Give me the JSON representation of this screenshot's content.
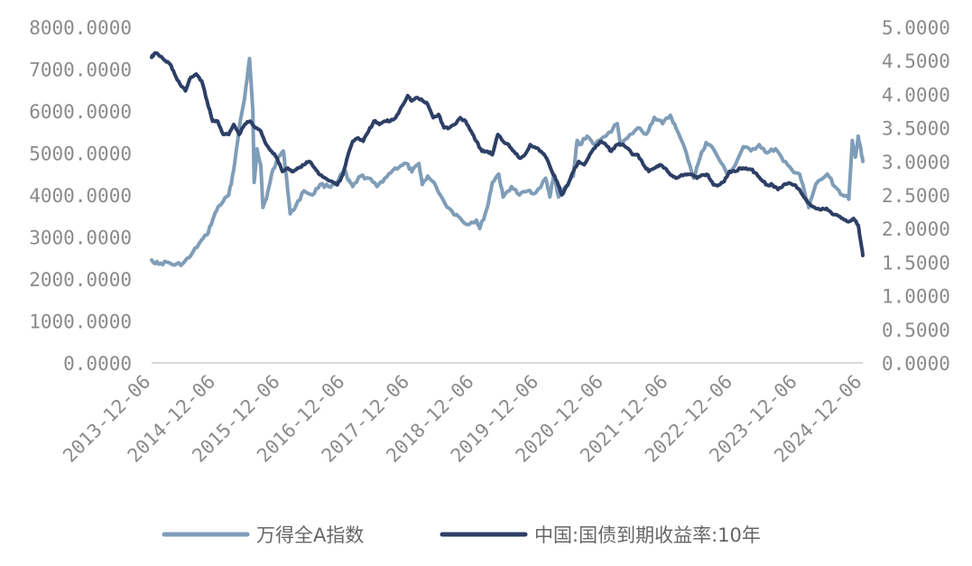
{
  "chart_data": {
    "type": "line",
    "title": "",
    "xlabel": "",
    "ylabel_left": "",
    "ylabel_right": "",
    "x_range": [
      "2013-12-06",
      "2024-12-06"
    ],
    "x_tick_labels": [
      "2013-12-06",
      "2014-12-06",
      "2015-12-06",
      "2016-12-06",
      "2017-12-06",
      "2018-12-06",
      "2019-12-06",
      "2020-12-06",
      "2021-12-06",
      "2022-12-06",
      "2023-12-06",
      "2024-12-06"
    ],
    "y_left": {
      "lim": [
        0,
        8000
      ],
      "tick_labels": [
        "0.0000",
        "1000.0000",
        "2000.0000",
        "3000.0000",
        "4000.0000",
        "5000.0000",
        "6000.0000",
        "7000.0000",
        "8000.0000"
      ]
    },
    "y_right": {
      "lim": [
        0,
        5
      ],
      "tick_labels": [
        "0.0000",
        "0.5000",
        "1.0000",
        "1.5000",
        "2.0000",
        "2.5000",
        "3.0000",
        "3.5000",
        "4.0000",
        "4.5000",
        "5.0000"
      ]
    },
    "grid": false,
    "legend_position": "bottom",
    "series": [
      {
        "name": "万得全A指数",
        "axis": "left",
        "color": "#7f9db8",
        "points": [
          [
            "2013-12-06",
            2450
          ],
          [
            "2014-01-15",
            2350
          ],
          [
            "2014-03-01",
            2400
          ],
          [
            "2014-04-15",
            2330
          ],
          [
            "2014-06-01",
            2370
          ],
          [
            "2014-07-15",
            2550
          ],
          [
            "2014-09-01",
            2850
          ],
          [
            "2014-10-15",
            3050
          ],
          [
            "2014-11-15",
            3400
          ],
          [
            "2014-12-15",
            3700
          ],
          [
            "2015-01-15",
            3850
          ],
          [
            "2015-02-15",
            4000
          ],
          [
            "2015-03-15",
            4600
          ],
          [
            "2015-04-15",
            5600
          ],
          [
            "2015-05-15",
            6300
          ],
          [
            "2015-06-12",
            7250
          ],
          [
            "2015-07-01",
            6000
          ],
          [
            "2015-07-08",
            4300
          ],
          [
            "2015-07-25",
            5100
          ],
          [
            "2015-08-15",
            4700
          ],
          [
            "2015-08-27",
            3700
          ],
          [
            "2015-09-15",
            3900
          ],
          [
            "2015-10-15",
            4500
          ],
          [
            "2015-11-15",
            4850
          ],
          [
            "2015-12-20",
            5050
          ],
          [
            "2016-01-10",
            4300
          ],
          [
            "2016-01-28",
            3550
          ],
          [
            "2016-03-01",
            3750
          ],
          [
            "2016-04-15",
            4100
          ],
          [
            "2016-06-01",
            4000
          ],
          [
            "2016-07-15",
            4250
          ],
          [
            "2016-09-01",
            4200
          ],
          [
            "2016-10-15",
            4300
          ],
          [
            "2016-11-30",
            4600
          ],
          [
            "2016-12-20",
            4350
          ],
          [
            "2017-01-15",
            4200
          ],
          [
            "2017-03-01",
            4450
          ],
          [
            "2017-04-15",
            4400
          ],
          [
            "2017-06-01",
            4200
          ],
          [
            "2017-07-15",
            4400
          ],
          [
            "2017-09-01",
            4600
          ],
          [
            "2017-10-15",
            4700
          ],
          [
            "2017-11-15",
            4750
          ],
          [
            "2017-12-15",
            4550
          ],
          [
            "2018-01-25",
            4750
          ],
          [
            "2018-02-12",
            4250
          ],
          [
            "2018-03-15",
            4450
          ],
          [
            "2018-05-01",
            4200
          ],
          [
            "2018-06-20",
            3800
          ],
          [
            "2018-08-01",
            3600
          ],
          [
            "2018-09-01",
            3500
          ],
          [
            "2018-10-20",
            3300
          ],
          [
            "2018-12-15",
            3400
          ],
          [
            "2019-01-03",
            3200
          ],
          [
            "2019-02-15",
            3700
          ],
          [
            "2019-03-15",
            4300
          ],
          [
            "2019-04-20",
            4500
          ],
          [
            "2019-05-15",
            3950
          ],
          [
            "2019-07-01",
            4200
          ],
          [
            "2019-08-15",
            4000
          ],
          [
            "2019-10-01",
            4100
          ],
          [
            "2019-11-15",
            4050
          ],
          [
            "2020-01-10",
            4400
          ],
          [
            "2020-02-03",
            3950
          ],
          [
            "2020-02-25",
            4500
          ],
          [
            "2020-03-23",
            3950
          ],
          [
            "2020-05-01",
            4200
          ],
          [
            "2020-06-15",
            4450
          ],
          [
            "2020-07-06",
            5300
          ],
          [
            "2020-07-20",
            5200
          ],
          [
            "2020-09-01",
            5400
          ],
          [
            "2020-10-15",
            5200
          ],
          [
            "2020-12-15",
            5400
          ],
          [
            "2021-02-18",
            5700
          ],
          [
            "2021-03-10",
            5200
          ],
          [
            "2021-04-15",
            5350
          ],
          [
            "2021-06-15",
            5600
          ],
          [
            "2021-08-01",
            5450
          ],
          [
            "2021-09-15",
            5850
          ],
          [
            "2021-11-01",
            5700
          ],
          [
            "2021-12-15",
            5900
          ],
          [
            "2022-01-15",
            5600
          ],
          [
            "2022-03-15",
            5000
          ],
          [
            "2022-04-26",
            4400
          ],
          [
            "2022-06-01",
            4900
          ],
          [
            "2022-07-05",
            5250
          ],
          [
            "2022-08-15",
            5100
          ],
          [
            "2022-10-31",
            4500
          ],
          [
            "2022-12-15",
            4700
          ],
          [
            "2023-01-31",
            5150
          ],
          [
            "2023-03-15",
            5050
          ],
          [
            "2023-05-01",
            5200
          ],
          [
            "2023-06-15",
            5000
          ],
          [
            "2023-08-01",
            5100
          ],
          [
            "2023-09-15",
            4800
          ],
          [
            "2023-11-01",
            4600
          ],
          [
            "2023-12-15",
            4500
          ],
          [
            "2024-01-22",
            3900
          ],
          [
            "2024-02-05",
            3700
          ],
          [
            "2024-03-15",
            4250
          ],
          [
            "2024-05-20",
            4500
          ],
          [
            "2024-07-01",
            4200
          ],
          [
            "2024-08-15",
            4000
          ],
          [
            "2024-09-18",
            3900
          ],
          [
            "2024-10-08",
            5300
          ],
          [
            "2024-10-25",
            4900
          ],
          [
            "2024-11-10",
            5400
          ],
          [
            "2024-11-25",
            5100
          ],
          [
            "2024-12-06",
            4800
          ]
        ]
      },
      {
        "name": "中国:国债到期收益率:10年",
        "axis": "right",
        "color": "#2d3f66",
        "points": [
          [
            "2013-12-06",
            4.55
          ],
          [
            "2013-12-20",
            4.6
          ],
          [
            "2014-01-10",
            4.6
          ],
          [
            "2014-02-20",
            4.5
          ],
          [
            "2014-03-20",
            4.45
          ],
          [
            "2014-04-15",
            4.3
          ],
          [
            "2014-05-15",
            4.15
          ],
          [
            "2014-06-15",
            4.05
          ],
          [
            "2014-07-15",
            4.25
          ],
          [
            "2014-08-15",
            4.3
          ],
          [
            "2014-09-15",
            4.2
          ],
          [
            "2014-10-15",
            3.9
          ],
          [
            "2014-11-15",
            3.6
          ],
          [
            "2014-12-15",
            3.6
          ],
          [
            "2015-01-15",
            3.4
          ],
          [
            "2015-02-15",
            3.4
          ],
          [
            "2015-03-15",
            3.55
          ],
          [
            "2015-04-15",
            3.4
          ],
          [
            "2015-05-15",
            3.55
          ],
          [
            "2015-06-15",
            3.6
          ],
          [
            "2015-07-15",
            3.5
          ],
          [
            "2015-08-15",
            3.45
          ],
          [
            "2015-09-15",
            3.25
          ],
          [
            "2015-10-15",
            3.15
          ],
          [
            "2015-11-15",
            3.05
          ],
          [
            "2015-12-15",
            2.85
          ],
          [
            "2016-01-15",
            2.9
          ],
          [
            "2016-02-15",
            2.85
          ],
          [
            "2016-03-15",
            2.9
          ],
          [
            "2016-04-15",
            2.95
          ],
          [
            "2016-05-15",
            3.0
          ],
          [
            "2016-06-15",
            2.9
          ],
          [
            "2016-07-15",
            2.8
          ],
          [
            "2016-08-15",
            2.75
          ],
          [
            "2016-10-20",
            2.65
          ],
          [
            "2016-11-20",
            2.8
          ],
          [
            "2016-12-20",
            3.1
          ],
          [
            "2017-01-15",
            3.3
          ],
          [
            "2017-02-15",
            3.35
          ],
          [
            "2017-03-15",
            3.3
          ],
          [
            "2017-04-15",
            3.45
          ],
          [
            "2017-05-15",
            3.6
          ],
          [
            "2017-06-15",
            3.55
          ],
          [
            "2017-07-15",
            3.6
          ],
          [
            "2017-08-15",
            3.6
          ],
          [
            "2017-09-15",
            3.65
          ],
          [
            "2017-10-15",
            3.8
          ],
          [
            "2017-11-22",
            3.98
          ],
          [
            "2017-12-15",
            3.9
          ],
          [
            "2018-01-15",
            3.95
          ],
          [
            "2018-02-15",
            3.9
          ],
          [
            "2018-03-15",
            3.85
          ],
          [
            "2018-04-15",
            3.65
          ],
          [
            "2018-05-15",
            3.7
          ],
          [
            "2018-06-15",
            3.5
          ],
          [
            "2018-07-15",
            3.5
          ],
          [
            "2018-08-15",
            3.55
          ],
          [
            "2018-09-15",
            3.65
          ],
          [
            "2018-10-15",
            3.6
          ],
          [
            "2018-11-15",
            3.45
          ],
          [
            "2018-12-15",
            3.3
          ],
          [
            "2019-01-15",
            3.15
          ],
          [
            "2019-02-15",
            3.15
          ],
          [
            "2019-03-15",
            3.1
          ],
          [
            "2019-04-15",
            3.4
          ],
          [
            "2019-05-15",
            3.3
          ],
          [
            "2019-06-15",
            3.25
          ],
          [
            "2019-07-15",
            3.15
          ],
          [
            "2019-08-15",
            3.05
          ],
          [
            "2019-09-15",
            3.1
          ],
          [
            "2019-10-15",
            3.25
          ],
          [
            "2019-11-15",
            3.2
          ],
          [
            "2019-12-15",
            3.15
          ],
          [
            "2020-01-15",
            3.05
          ],
          [
            "2020-02-15",
            2.85
          ],
          [
            "2020-03-15",
            2.7
          ],
          [
            "2020-04-10",
            2.5
          ],
          [
            "2020-05-15",
            2.65
          ],
          [
            "2020-06-15",
            2.85
          ],
          [
            "2020-07-15",
            3.0
          ],
          [
            "2020-08-15",
            2.95
          ],
          [
            "2020-09-15",
            3.1
          ],
          [
            "2020-10-15",
            3.2
          ],
          [
            "2020-11-15",
            3.3
          ],
          [
            "2020-12-15",
            3.25
          ],
          [
            "2021-01-15",
            3.15
          ],
          [
            "2021-02-15",
            3.25
          ],
          [
            "2021-03-15",
            3.25
          ],
          [
            "2021-04-15",
            3.2
          ],
          [
            "2021-05-15",
            3.1
          ],
          [
            "2021-06-15",
            3.1
          ],
          [
            "2021-07-15",
            2.95
          ],
          [
            "2021-08-15",
            2.85
          ],
          [
            "2021-09-15",
            2.9
          ],
          [
            "2021-10-15",
            2.95
          ],
          [
            "2021-11-15",
            2.9
          ],
          [
            "2021-12-15",
            2.8
          ],
          [
            "2022-01-15",
            2.75
          ],
          [
            "2022-02-15",
            2.8
          ],
          [
            "2022-03-15",
            2.8
          ],
          [
            "2022-04-15",
            2.8
          ],
          [
            "2022-05-15",
            2.75
          ],
          [
            "2022-06-15",
            2.8
          ],
          [
            "2022-07-15",
            2.8
          ],
          [
            "2022-08-15",
            2.65
          ],
          [
            "2022-09-15",
            2.65
          ],
          [
            "2022-10-15",
            2.7
          ],
          [
            "2022-11-15",
            2.85
          ],
          [
            "2022-12-15",
            2.85
          ],
          [
            "2023-01-15",
            2.9
          ],
          [
            "2023-02-15",
            2.9
          ],
          [
            "2023-03-15",
            2.88
          ],
          [
            "2023-04-15",
            2.82
          ],
          [
            "2023-05-15",
            2.72
          ],
          [
            "2023-06-15",
            2.65
          ],
          [
            "2023-07-15",
            2.65
          ],
          [
            "2023-08-15",
            2.58
          ],
          [
            "2023-09-15",
            2.65
          ],
          [
            "2023-10-15",
            2.68
          ],
          [
            "2023-11-15",
            2.65
          ],
          [
            "2023-12-15",
            2.58
          ],
          [
            "2024-01-15",
            2.45
          ],
          [
            "2024-02-15",
            2.35
          ],
          [
            "2024-03-15",
            2.3
          ],
          [
            "2024-04-15",
            2.28
          ],
          [
            "2024-05-15",
            2.3
          ],
          [
            "2024-06-15",
            2.22
          ],
          [
            "2024-07-15",
            2.2
          ],
          [
            "2024-08-15",
            2.15
          ],
          [
            "2024-09-15",
            2.1
          ],
          [
            "2024-10-15",
            2.15
          ],
          [
            "2024-11-10",
            2.05
          ],
          [
            "2024-11-25",
            1.8
          ],
          [
            "2024-12-06",
            1.6
          ]
        ]
      }
    ]
  }
}
